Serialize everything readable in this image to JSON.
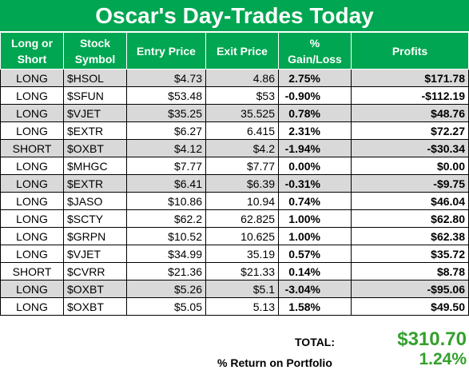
{
  "title": "Oscar's Day-Trades Today",
  "columns": [
    "Long or Short",
    "Stock Symbol",
    "Entry Price",
    "Exit Price",
    "% Gain/Loss",
    "Profits"
  ],
  "rows": [
    {
      "type": "LONG",
      "symbol": "$HSOL",
      "entry": "$4.73",
      "exit": "4.86",
      "pct": "2.75%",
      "profit": "$171.78"
    },
    {
      "type": "LONG",
      "symbol": "$SFUN",
      "entry": "$53.48",
      "exit": "$53",
      "pct": "-0.90%",
      "profit": "-$112.19"
    },
    {
      "type": "LONG",
      "symbol": "$VJET",
      "entry": "$35.25",
      "exit": "35.525",
      "pct": "0.78%",
      "profit": "$48.76"
    },
    {
      "type": "LONG",
      "symbol": "$EXTR",
      "entry": "$6.27",
      "exit": "6.415",
      "pct": "2.31%",
      "profit": "$72.27"
    },
    {
      "type": "SHORT",
      "symbol": "$OXBT",
      "entry": "$4.12",
      "exit": "$4.2",
      "pct": "-1.94%",
      "profit": "-$30.34"
    },
    {
      "type": "LONG",
      "symbol": "$MHGC",
      "entry": "$7.77",
      "exit": "$7.77",
      "pct": "0.00%",
      "profit": "$0.00"
    },
    {
      "type": "LONG",
      "symbol": "$EXTR",
      "entry": "$6.41",
      "exit": "$6.39",
      "pct": "-0.31%",
      "profit": "-$9.75"
    },
    {
      "type": "LONG",
      "symbol": "$JASO",
      "entry": "$10.86",
      "exit": "10.94",
      "pct": "0.74%",
      "profit": "$46.04"
    },
    {
      "type": "LONG",
      "symbol": "$SCTY",
      "entry": "$62.2",
      "exit": "62.825",
      "pct": "1.00%",
      "profit": "$62.80"
    },
    {
      "type": "LONG",
      "symbol": "$GRPN",
      "entry": "$10.52",
      "exit": "10.625",
      "pct": "1.00%",
      "profit": "$62.38"
    },
    {
      "type": "LONG",
      "symbol": "$VJET",
      "entry": "$34.99",
      "exit": "35.19",
      "pct": "0.57%",
      "profit": "$35.72"
    },
    {
      "type": "SHORT",
      "symbol": "$CVRR",
      "entry": "$21.36",
      "exit": "$21.33",
      "pct": "0.14%",
      "profit": "$8.78"
    },
    {
      "type": "LONG",
      "symbol": "$OXBT",
      "entry": "$5.26",
      "exit": "$5.1",
      "pct": "-3.04%",
      "profit": "-$95.06"
    },
    {
      "type": "LONG",
      "symbol": "$OXBT",
      "entry": "$5.05",
      "exit": "5.13",
      "pct": "1.58%",
      "profit": "$49.50"
    }
  ],
  "summary": {
    "total_label": "TOTAL:",
    "total_value": "$310.70",
    "return_label": "% Return on Portfolio",
    "return_value": "1.24%"
  },
  "colors": {
    "header_green": "#00a651",
    "summary_green": "#33a02c",
    "row_shade": "#d9d9d9"
  }
}
